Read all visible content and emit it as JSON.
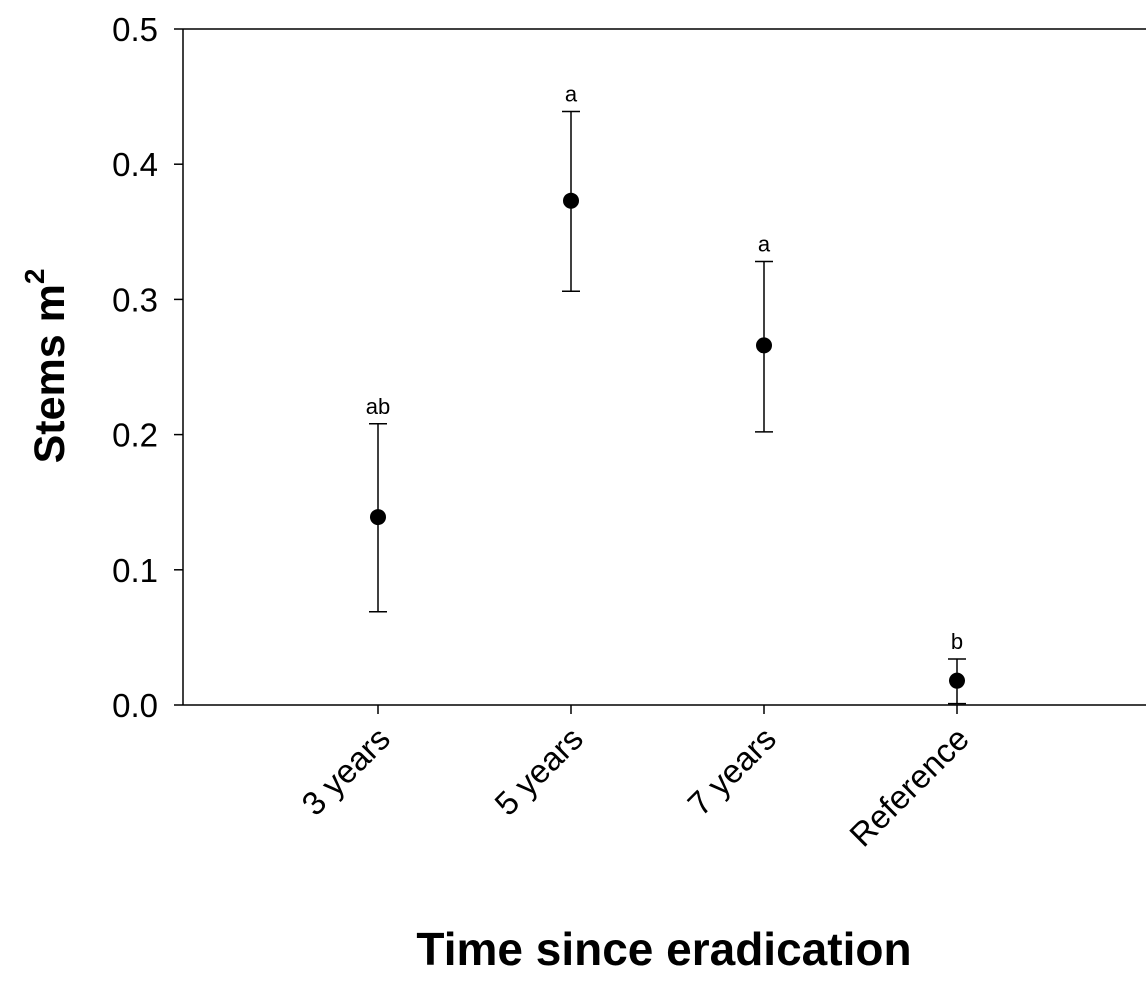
{
  "chart_data": {
    "type": "scatter",
    "categories": [
      "3 years",
      "5 years",
      "7 years",
      "Reference"
    ],
    "values": [
      0.139,
      0.373,
      0.266,
      0.018
    ],
    "error_upper": [
      0.208,
      0.439,
      0.328,
      0.034
    ],
    "error_lower": [
      0.069,
      0.306,
      0.202,
      0.001
    ],
    "significance_letters": [
      "ab",
      "a",
      "a",
      "b"
    ],
    "xlabel": "Time since eradication",
    "ylabel": "Stems m",
    "ylabel_superscript": "2",
    "ylim": [
      0,
      0.5
    ],
    "yticks": [
      0,
      0.1,
      0.2,
      0.3,
      0.4,
      0.5
    ],
    "ytick_labels": [
      "0.0",
      "0.1",
      "0.2",
      "0.3",
      "0.4",
      "0.5"
    ],
    "grid": false,
    "marker_color": "#000000"
  }
}
